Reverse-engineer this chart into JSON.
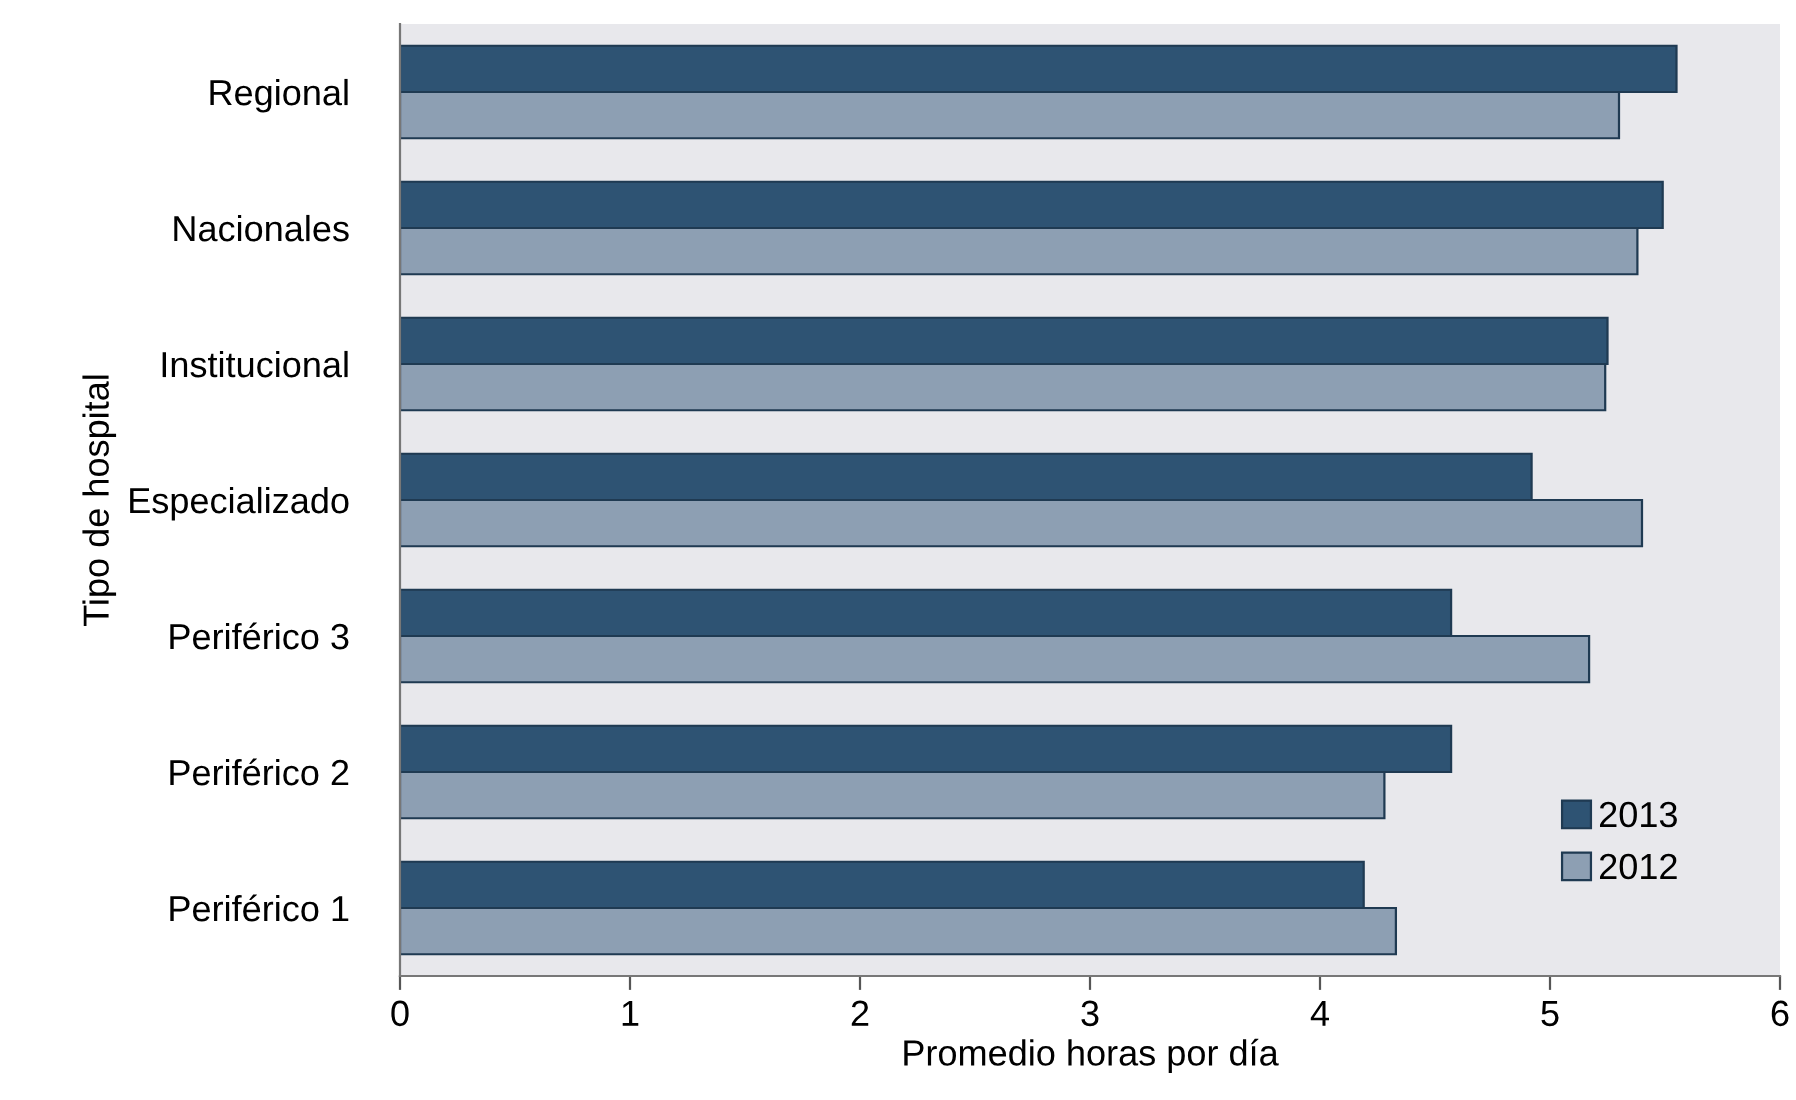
{
  "chart_data": {
    "type": "bar",
    "orientation": "horizontal",
    "xlabel": "Promedio horas por día",
    "ylabel": "Tipo de hospital",
    "categories": [
      "Regional",
      "Nacionales",
      "Institucional",
      "Especializado",
      "Periférico 3",
      "Periférico 2",
      "Periférico 1"
    ],
    "series": [
      {
        "name": "2013",
        "color": "#2e5373",
        "values": [
          5.55,
          5.49,
          5.25,
          4.92,
          4.57,
          4.57,
          4.19
        ]
      },
      {
        "name": "2012",
        "color": "#8d9fb3",
        "values": [
          5.3,
          5.38,
          5.24,
          5.4,
          5.17,
          4.28,
          4.33
        ]
      }
    ],
    "xlim": [
      0,
      6
    ],
    "xticks": [
      0,
      1,
      2,
      3,
      4,
      5,
      6
    ],
    "grid": false,
    "legend": "bottom right"
  }
}
